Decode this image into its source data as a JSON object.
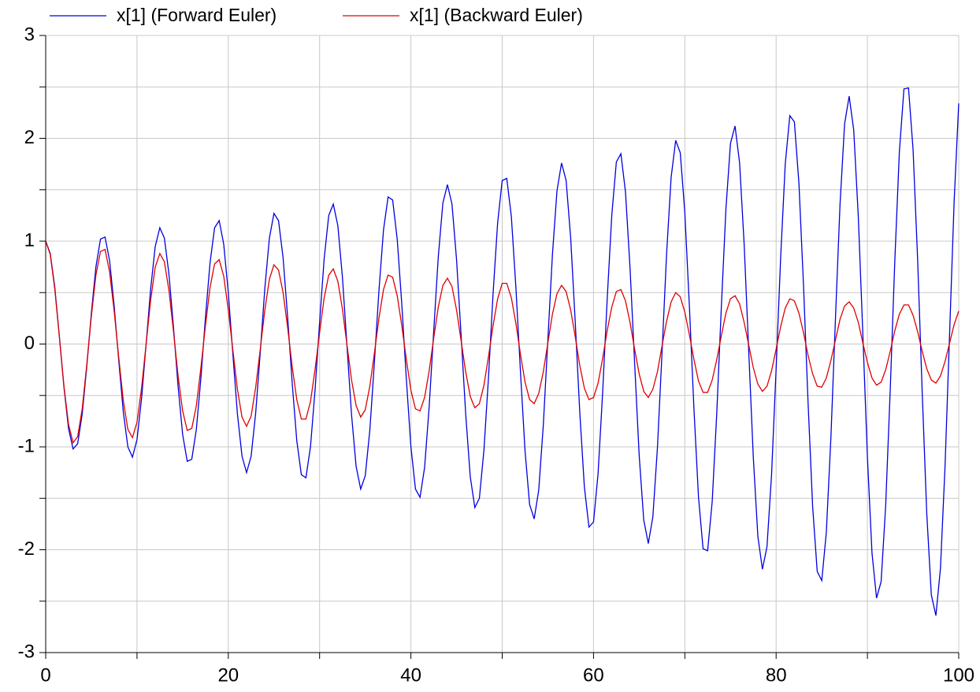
{
  "chart_data": {
    "type": "line",
    "x": [
      0,
      0.5,
      1,
      1.5,
      2,
      2.5,
      3,
      3.5,
      4,
      4.5,
      5,
      5.5,
      6,
      6.5,
      7,
      7.5,
      8,
      8.5,
      9,
      9.5,
      10,
      10.5,
      11,
      11.5,
      12,
      12.5,
      13,
      13.5,
      14,
      14.5,
      15,
      15.5,
      16,
      16.5,
      17,
      17.5,
      18,
      18.5,
      19,
      19.5,
      20,
      20.5,
      21,
      21.5,
      22,
      22.5,
      23,
      23.5,
      24,
      24.5,
      25,
      25.5,
      26,
      26.5,
      27,
      27.5,
      28,
      28.5,
      29,
      29.5,
      30,
      30.5,
      31,
      31.5,
      32,
      32.5,
      33,
      33.5,
      34,
      34.5,
      35,
      35.5,
      36,
      36.5,
      37,
      37.5,
      38,
      38.5,
      39,
      39.5,
      40,
      40.5,
      41,
      41.5,
      42,
      42.5,
      43,
      43.5,
      44,
      44.5,
      45,
      45.5,
      46,
      46.5,
      47,
      47.5,
      48,
      48.5,
      49,
      49.5,
      50,
      50.5,
      51,
      51.5,
      52,
      52.5,
      53,
      53.5,
      54,
      54.5,
      55,
      55.5,
      56,
      56.5,
      57,
      57.5,
      58,
      58.5,
      59,
      59.5,
      60,
      60.5,
      61,
      61.5,
      62,
      62.5,
      63,
      63.5,
      64,
      64.5,
      65,
      65.5,
      66,
      66.5,
      67,
      67.5,
      68,
      68.5,
      69,
      69.5,
      70,
      70.5,
      71,
      71.5,
      72,
      72.5,
      73,
      73.5,
      74,
      74.5,
      75,
      75.5,
      76,
      76.5,
      77,
      77.5,
      78,
      78.5,
      79,
      79.5,
      80,
      80.5,
      81,
      81.5,
      82,
      82.5,
      83,
      83.5,
      84,
      84.5,
      85,
      85.5,
      86,
      86.5,
      87,
      87.5,
      88,
      88.5,
      89,
      89.5,
      90,
      90.5,
      91,
      91.5,
      92,
      92.5,
      93,
      93.5,
      94,
      94.5,
      95,
      95.5,
      96,
      96.5,
      97,
      97.5,
      98,
      98.5,
      99,
      99.5,
      100
    ],
    "series": [
      {
        "name": "x[1] (Forward Euler)",
        "color": "#0000e0",
        "values": [
          1.0,
          0.88,
          0.55,
          0.07,
          -0.42,
          -0.82,
          -1.02,
          -0.97,
          -0.68,
          -0.22,
          0.3,
          0.75,
          1.02,
          1.04,
          0.81,
          0.37,
          -0.16,
          -0.66,
          -1.0,
          -1.1,
          -0.93,
          -0.53,
          0.0,
          0.54,
          0.95,
          1.13,
          1.03,
          0.68,
          0.16,
          -0.41,
          -0.88,
          -1.14,
          -1.12,
          -0.83,
          -0.33,
          0.26,
          0.79,
          1.13,
          1.2,
          0.97,
          0.5,
          -0.1,
          -0.68,
          -1.09,
          -1.25,
          -1.09,
          -0.67,
          -0.08,
          0.54,
          1.03,
          1.27,
          1.2,
          0.84,
          0.26,
          -0.38,
          -0.94,
          -1.27,
          -1.3,
          -1.0,
          -0.45,
          0.21,
          0.83,
          1.25,
          1.36,
          1.15,
          0.65,
          -0.02,
          -0.69,
          -1.19,
          -1.41,
          -1.28,
          -0.84,
          -0.18,
          0.52,
          1.11,
          1.43,
          1.4,
          1.02,
          0.39,
          -0.34,
          -1.0,
          -1.41,
          -1.49,
          -1.2,
          -0.61,
          0.13,
          0.85,
          1.37,
          1.55,
          1.36,
          0.82,
          0.08,
          -0.68,
          -1.29,
          -1.59,
          -1.5,
          -1.03,
          -0.32,
          0.49,
          1.18,
          1.59,
          1.61,
          1.24,
          0.55,
          -0.27,
          -1.04,
          -1.56,
          -1.7,
          -1.42,
          -0.79,
          0.04,
          0.87,
          1.49,
          1.76,
          1.59,
          1.03,
          0.21,
          -0.67,
          -1.39,
          -1.78,
          -1.73,
          -1.26,
          -0.47,
          0.44,
          1.25,
          1.77,
          1.85,
          1.48,
          0.74,
          -0.18,
          -1.08,
          -1.71,
          -1.94,
          -1.68,
          -1.01,
          -0.09,
          0.87,
          1.62,
          1.98,
          1.86,
          1.28,
          0.37,
          -0.63,
          -1.49,
          -1.99,
          -2.01,
          -1.53,
          -0.67,
          0.36,
          1.31,
          1.95,
          2.12,
          1.76,
          0.97,
          -0.07,
          -1.1,
          -1.87,
          -2.19,
          -1.97,
          -1.27,
          -0.24,
          0.85,
          1.75,
          2.22,
          2.16,
          1.56,
          0.57,
          -0.57,
          -1.58,
          -2.21,
          -2.3,
          -1.83,
          -0.91,
          0.25,
          1.36,
          2.14,
          2.41,
          2.08,
          1.24,
          0.09,
          -1.1,
          -2.03,
          -2.47,
          -2.31,
          -1.57,
          -0.44,
          0.81,
          1.87,
          2.48,
          2.49,
          1.89,
          0.82,
          -0.47,
          -1.65,
          -2.44,
          -2.64,
          -2.18,
          -1.19,
          0.1,
          1.39,
          2.34
        ]
      },
      {
        "name": "x[1] (Backward Euler)",
        "color": "#e00000",
        "values": [
          1.0,
          0.87,
          0.53,
          0.07,
          -0.41,
          -0.78,
          -0.96,
          -0.9,
          -0.63,
          -0.2,
          0.27,
          0.67,
          0.9,
          0.92,
          0.7,
          0.32,
          -0.13,
          -0.55,
          -0.83,
          -0.91,
          -0.76,
          -0.43,
          0.0,
          0.43,
          0.75,
          0.88,
          0.8,
          0.52,
          0.12,
          -0.31,
          -0.65,
          -0.84,
          -0.82,
          -0.6,
          -0.23,
          0.18,
          0.55,
          0.78,
          0.82,
          0.66,
          0.33,
          -0.06,
          -0.44,
          -0.71,
          -0.8,
          -0.7,
          -0.42,
          -0.05,
          0.33,
          0.63,
          0.77,
          0.72,
          0.5,
          0.16,
          -0.22,
          -0.54,
          -0.73,
          -0.73,
          -0.56,
          -0.25,
          0.11,
          0.45,
          0.67,
          0.73,
          0.61,
          0.34,
          -0.01,
          -0.35,
          -0.6,
          -0.71,
          -0.64,
          -0.41,
          -0.09,
          0.25,
          0.53,
          0.67,
          0.65,
          0.47,
          0.18,
          -0.15,
          -0.45,
          -0.63,
          -0.65,
          -0.52,
          -0.26,
          0.06,
          0.36,
          0.57,
          0.64,
          0.56,
          0.33,
          0.03,
          -0.27,
          -0.51,
          -0.62,
          -0.58,
          -0.4,
          -0.12,
          0.18,
          0.44,
          0.59,
          0.59,
          0.45,
          0.2,
          -0.1,
          -0.37,
          -0.54,
          -0.58,
          -0.48,
          -0.27,
          0.01,
          0.29,
          0.49,
          0.57,
          0.51,
          0.33,
          0.07,
          -0.21,
          -0.43,
          -0.54,
          -0.52,
          -0.38,
          -0.14,
          0.13,
          0.36,
          0.51,
          0.53,
          0.42,
          0.21,
          -0.05,
          -0.29,
          -0.46,
          -0.52,
          -0.44,
          -0.27,
          -0.02,
          0.22,
          0.41,
          0.5,
          0.46,
          0.31,
          0.09,
          -0.15,
          -0.36,
          -0.47,
          -0.47,
          -0.35,
          -0.15,
          0.08,
          0.3,
          0.44,
          0.47,
          0.39,
          0.21,
          -0.01,
          -0.23,
          -0.39,
          -0.46,
          -0.41,
          -0.26,
          -0.05,
          0.17,
          0.35,
          0.44,
          0.42,
          0.3,
          0.11,
          -0.11,
          -0.29,
          -0.41,
          -0.42,
          -0.33,
          -0.16,
          0.04,
          0.24,
          0.37,
          0.41,
          0.35,
          0.21,
          0.01,
          -0.18,
          -0.33,
          -0.4,
          -0.37,
          -0.25,
          -0.07,
          0.13,
          0.29,
          0.38,
          0.38,
          0.28,
          0.12,
          -0.07,
          -0.24,
          -0.35,
          -0.38,
          -0.31,
          -0.17,
          0.01,
          0.19,
          0.32
        ]
      }
    ],
    "xlim": [
      0,
      100
    ],
    "xticks": [
      0,
      20,
      40,
      60,
      80,
      100
    ],
    "ylim": [
      -3,
      3
    ],
    "yticks": [
      -3,
      -2,
      -1,
      0,
      1,
      2,
      3
    ],
    "grid": true
  }
}
